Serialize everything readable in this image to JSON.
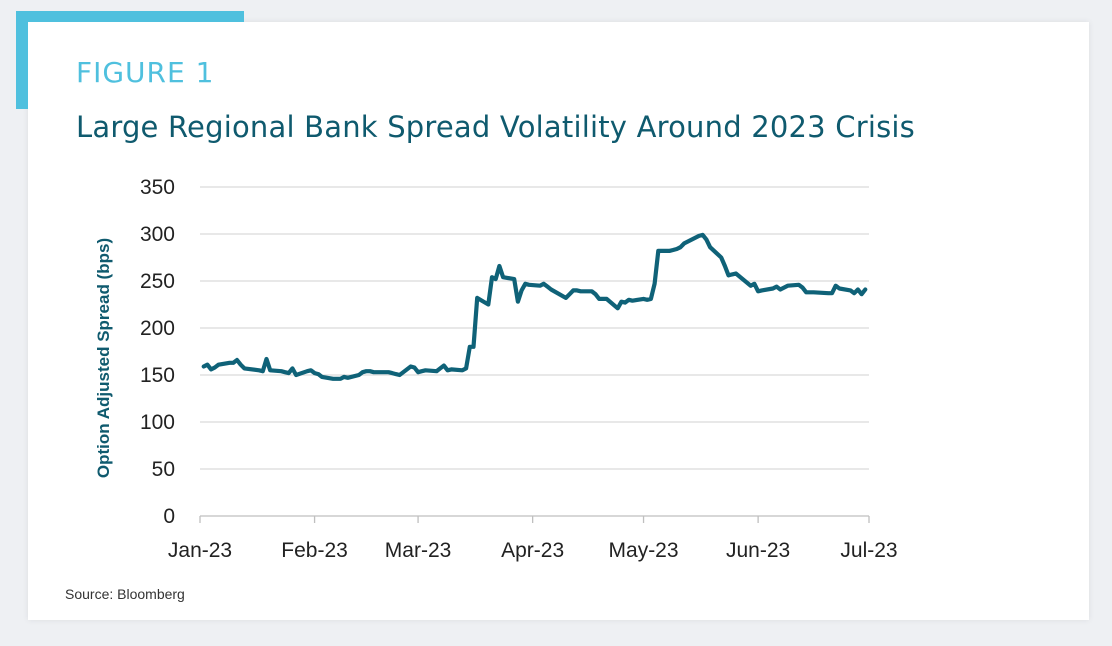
{
  "figure_label": "FIGURE 1",
  "source": "Source: Bloomberg",
  "colors": {
    "accent": "#4fc0de",
    "title": "#0f5a6e",
    "series": "#0f6278",
    "grid": "#d9d9d9"
  },
  "chart_data": {
    "type": "line",
    "title": "Large Regional Bank Spread Volatility Around 2023 Crisis",
    "xlabel": "",
    "ylabel": "Option Adjusted Spread (bps)",
    "ylim": [
      0,
      350
    ],
    "yticks": [
      0,
      50,
      100,
      150,
      200,
      250,
      300,
      350
    ],
    "xlim": [
      "2023-01-01",
      "2023-07-01"
    ],
    "xticks": [
      {
        "date": "2023-01-01",
        "label": "Jan-23"
      },
      {
        "date": "2023-02-01",
        "label": "Feb-23"
      },
      {
        "date": "2023-03-01",
        "label": "Mar-23"
      },
      {
        "date": "2023-04-01",
        "label": "Apr-23"
      },
      {
        "date": "2023-05-01",
        "label": "May-23"
      },
      {
        "date": "2023-06-01",
        "label": "Jun-23"
      },
      {
        "date": "2023-07-01",
        "label": "Jul-23"
      }
    ],
    "grid": true,
    "series": [
      {
        "color": "#0f6278",
        "x": [
          "2023-01-02",
          "2023-01-03",
          "2023-01-04",
          "2023-01-05",
          "2023-01-06",
          "2023-01-09",
          "2023-01-10",
          "2023-01-11",
          "2023-01-12",
          "2023-01-13",
          "2023-01-17",
          "2023-01-18",
          "2023-01-19",
          "2023-01-20",
          "2023-01-23",
          "2023-01-24",
          "2023-01-25",
          "2023-01-26",
          "2023-01-27",
          "2023-01-30",
          "2023-01-31",
          "2023-02-01",
          "2023-02-02",
          "2023-02-03",
          "2023-02-06",
          "2023-02-07",
          "2023-02-08",
          "2023-02-09",
          "2023-02-10",
          "2023-02-13",
          "2023-02-14",
          "2023-02-15",
          "2023-02-16",
          "2023-02-17",
          "2023-02-21",
          "2023-02-22",
          "2023-02-23",
          "2023-02-24",
          "2023-02-27",
          "2023-02-28",
          "2023-03-01",
          "2023-03-02",
          "2023-03-03",
          "2023-03-06",
          "2023-03-07",
          "2023-03-08",
          "2023-03-09",
          "2023-03-10",
          "2023-03-13",
          "2023-03-14",
          "2023-03-15",
          "2023-03-16",
          "2023-03-17",
          "2023-03-20",
          "2023-03-21",
          "2023-03-22",
          "2023-03-23",
          "2023-03-24",
          "2023-03-27",
          "2023-03-28",
          "2023-03-29",
          "2023-03-30",
          "2023-03-31",
          "2023-04-03",
          "2023-04-04",
          "2023-04-05",
          "2023-04-06",
          "2023-04-10",
          "2023-04-11",
          "2023-04-12",
          "2023-04-13",
          "2023-04-14",
          "2023-04-17",
          "2023-04-18",
          "2023-04-19",
          "2023-04-20",
          "2023-04-21",
          "2023-04-24",
          "2023-04-25",
          "2023-04-26",
          "2023-04-27",
          "2023-04-28",
          "2023-05-01",
          "2023-05-02",
          "2023-05-03",
          "2023-05-04",
          "2023-05-05",
          "2023-05-08",
          "2023-05-09",
          "2023-05-10",
          "2023-05-11",
          "2023-05-12",
          "2023-05-15",
          "2023-05-16",
          "2023-05-17",
          "2023-05-18",
          "2023-05-19",
          "2023-05-22",
          "2023-05-23",
          "2023-05-24",
          "2023-05-25",
          "2023-05-26",
          "2023-05-30",
          "2023-05-31",
          "2023-06-01",
          "2023-06-02",
          "2023-06-05",
          "2023-06-06",
          "2023-06-07",
          "2023-06-08",
          "2023-06-09",
          "2023-06-12",
          "2023-06-13",
          "2023-06-14",
          "2023-06-15",
          "2023-06-16",
          "2023-06-20",
          "2023-06-21",
          "2023-06-22",
          "2023-06-23",
          "2023-06-26",
          "2023-06-27",
          "2023-06-28",
          "2023-06-29",
          "2023-06-30"
        ],
        "values": [
          159,
          161,
          156,
          158,
          161,
          163,
          163,
          166,
          161,
          157,
          155,
          154,
          167,
          155,
          154,
          153,
          152,
          157,
          150,
          154,
          155,
          152,
          151,
          148,
          146,
          146,
          146,
          148,
          147,
          150,
          153,
          154,
          154,
          153,
          153,
          152,
          151,
          150,
          159,
          158,
          153,
          154,
          155,
          154,
          157,
          160,
          155,
          156,
          155,
          157,
          180,
          180,
          232,
          225,
          254,
          252,
          266,
          254,
          252,
          228,
          240,
          247,
          246,
          245,
          247,
          244,
          241,
          232,
          236,
          240,
          240,
          239,
          239,
          236,
          231,
          231,
          231,
          221,
          228,
          227,
          230,
          229,
          231,
          230,
          231,
          247,
          282,
          282,
          283,
          284,
          286,
          290,
          296,
          298,
          299,
          294,
          286,
          275,
          266,
          256,
          257,
          258,
          245,
          247,
          239,
          240,
          242,
          244,
          241,
          243,
          245,
          246,
          243,
          238,
          238,
          238,
          237,
          237,
          245,
          242,
          240,
          237,
          241,
          236,
          241
        ]
      }
    ]
  }
}
